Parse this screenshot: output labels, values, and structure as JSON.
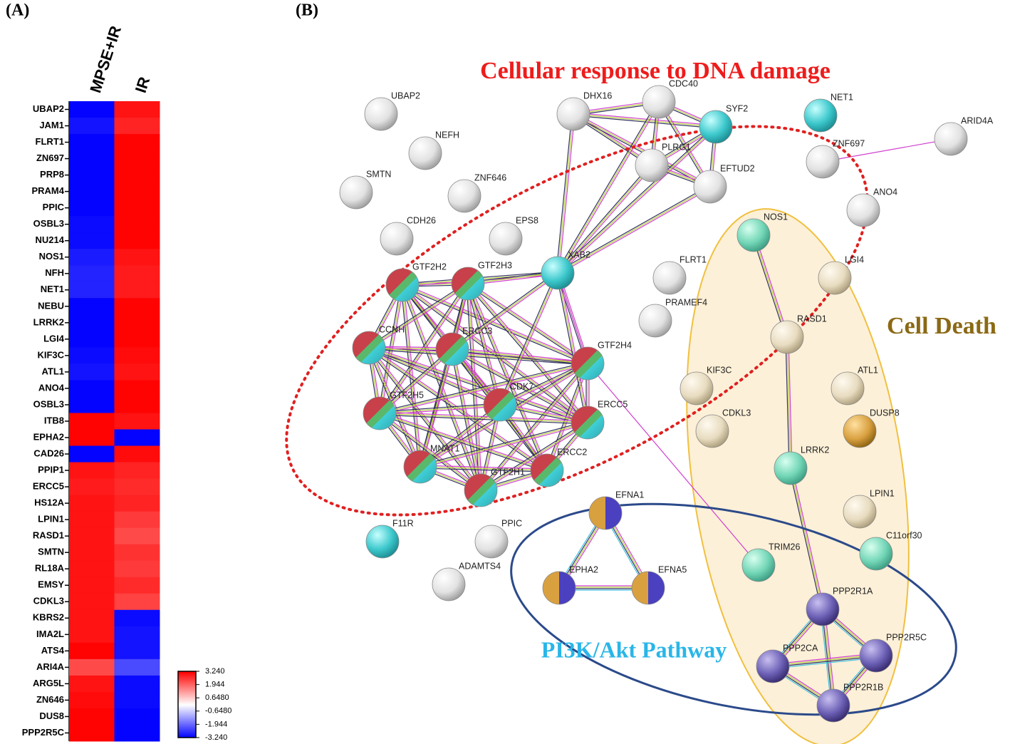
{
  "panels": [
    "(A)",
    "(B)"
  ],
  "chart_data": {
    "type": "heatmap",
    "categories": [
      "UBAP2",
      "JAM1",
      "FLRT1",
      "ZN697",
      "PRP8",
      "PRAM4",
      "PPIC",
      "OSBL3",
      "NU214",
      "NOS1",
      "NFH",
      "NET1",
      "NEBU",
      "LRRK2",
      "LGI4",
      "KIF3C",
      "ATL1",
      "ANO4",
      "OSBL3",
      "ITB8",
      "EPHA2",
      "CAD26",
      "PPIP1",
      "ERCC5",
      "HS12A",
      "LPIN1",
      "RASD1",
      "SMTN",
      "RL18A",
      "EMSY",
      "CDKL3",
      "KBRS2",
      "IMA2L",
      "ATS4",
      "ARI4A",
      "ARG5L",
      "ZN646",
      "DUS8",
      "PPP2R5C"
    ],
    "series": [
      {
        "name": "MPSE+IR",
        "values": [
          -3.2,
          -3.0,
          -3.2,
          -3.2,
          -3.2,
          -3.2,
          -3.2,
          -3.1,
          -3.1,
          -2.9,
          -2.8,
          -2.8,
          -3.2,
          -3.2,
          -3.2,
          -3.1,
          -3.0,
          -3.2,
          -3.2,
          3.2,
          3.2,
          -3.2,
          3.0,
          2.9,
          3.0,
          3.0,
          3.0,
          3.0,
          3.0,
          3.0,
          3.0,
          3.0,
          3.0,
          3.2,
          2.3,
          3.0,
          3.1,
          3.2,
          3.2
        ]
      },
      {
        "name": "IR",
        "values": [
          3.0,
          2.8,
          3.2,
          3.2,
          3.2,
          3.2,
          3.2,
          3.2,
          3.2,
          3.0,
          2.9,
          2.9,
          3.2,
          3.2,
          3.2,
          3.1,
          3.0,
          3.2,
          3.2,
          3.0,
          -3.2,
          3.1,
          2.8,
          2.7,
          2.8,
          2.5,
          2.3,
          2.6,
          2.5,
          2.7,
          2.4,
          -3.1,
          -3.0,
          -3.0,
          -2.3,
          -3.1,
          -3.1,
          -3.2,
          -3.2
        ]
      }
    ],
    "colors": [
      "#0000ff",
      "#ffffff",
      "#ff0000"
    ],
    "clim": [
      -3.24,
      3.24
    ],
    "cticks": [
      {
        "value": 3.24,
        "label": "3.240"
      },
      1.944,
      {
        "value": 0.648,
        "label": "0.6480"
      },
      {
        "value": -0.648,
        "label": "-0.6480"
      },
      -1.944,
      {
        "value": -3.24,
        "label": "-3.240"
      }
    ]
  },
  "network": {
    "nodes": [
      "UBAP2",
      "NEFH",
      "SMTN",
      "ZNF646",
      "CDH26",
      "EPS8",
      "DHX16",
      "CDC40",
      "SYF2",
      "PLRG1",
      "EFTUD2",
      "NET1",
      "ZNF697",
      "ARID4A",
      "ANO4",
      "NOS1",
      "XAB2",
      "GTF2H2",
      "GTF2H3",
      "FLRT1",
      "PRAMEF4",
      "LGI4",
      "CCNH",
      "ERCC3",
      "GTF2H4",
      "RASD1",
      "KIF3C",
      "ATL1",
      "CDK7",
      "GTF2H5",
      "ERCC5",
      "CDKL3",
      "DUSP8",
      "LRRK2",
      "MNAT1",
      "ERCC2",
      "GTF2H1",
      "LPIN1",
      "EFNA1",
      "F11R",
      "PPIC",
      "C11orf30",
      "TRIM26",
      "ADAMTS4",
      "EPHA2",
      "EFNA5",
      "PPP2R1A",
      "PPP2CA",
      "PPP2R5C",
      "PPP2R1B"
    ],
    "annotations": [
      "Cellular response to DNA damage",
      "Cell Death",
      "PI3K/Akt Pathway"
    ]
  }
}
